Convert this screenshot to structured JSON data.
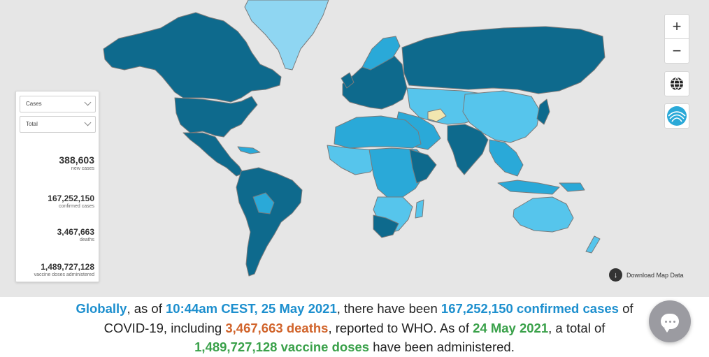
{
  "filters": {
    "metric": "Cases",
    "period": "Total"
  },
  "stats": [
    {
      "value": "388,603",
      "label": "new cases"
    },
    {
      "value": "167,252,150",
      "label": "confirmed cases"
    },
    {
      "value": "3,467,663",
      "label": "deaths"
    },
    {
      "value": "1,489,727,128",
      "label": "vaccine doses administered"
    }
  ],
  "controls": {
    "zoom_in": "+",
    "zoom_out": "−",
    "globe_icon": "globe-icon",
    "layers_icon": "layers-icon"
  },
  "download_label": "Download Map Data",
  "summary": {
    "p1": "Globally",
    "p2": ", as of ",
    "p3": "10:44am CEST, 25 May 2021",
    "p4": ", there have been ",
    "p5": "167,252,150 confirmed cases",
    "p6": " of",
    "p7": "COVID-19, including ",
    "p8": "3,467,663 deaths",
    "p9": ", reported to WHO. As of ",
    "p10": "24 May 2021",
    "p11": ", a total of",
    "p12": "1,489,727,128 vaccine doses",
    "p13": " have been administered."
  },
  "colors": {
    "ocean": "#e6e6e6",
    "dark": "#0e6a8d",
    "mid": "#2aa9d8",
    "light": "#56c5ec",
    "pale": "#8fd6f2",
    "cream": "#f2e6b0",
    "accent_blue": "#1d8fce",
    "accent_orange": "#d1642b",
    "accent_green": "#3aa14a"
  }
}
